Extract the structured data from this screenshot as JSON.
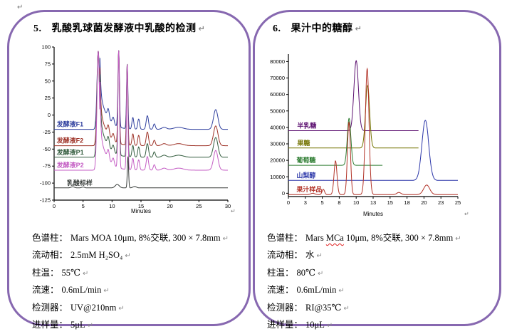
{
  "colors": {
    "panel_border": "#8768b0",
    "axis": "#000000",
    "spellcheck_underline": "#e02020",
    "formatting_mark": "#7a7a7a"
  },
  "glyphs": {
    "return": "↵"
  },
  "formatting_marks": {
    "glyph": "↵",
    "count": 11
  },
  "panels": [
    {
      "number": "5.",
      "title": "乳酸乳球菌发酵液中乳酸的检测",
      "specs": [
        {
          "label": "色谱柱：",
          "parts": [
            {
              "text": "Mars MOA 10μm, 8%交联, 300 × 7.8mm"
            }
          ]
        },
        {
          "label": "流动相：",
          "parts": [
            {
              "text": "2.5mM H₂SO₄"
            }
          ]
        },
        {
          "label": "柱温：",
          "parts": [
            {
              "text": "55℃"
            }
          ]
        },
        {
          "label": "流速：",
          "parts": [
            {
              "text": "0.6mL/min"
            }
          ]
        },
        {
          "label": "检测器：",
          "parts": [
            {
              "text": "UV@210nm"
            }
          ]
        },
        {
          "label": "进样量：",
          "parts": [
            {
              "text": "5μL"
            }
          ]
        }
      ]
    },
    {
      "number": "6.",
      "title": "果汁中的糖醇",
      "specs": [
        {
          "label": "色谱柱：",
          "parts": [
            {
              "text": "Mars "
            },
            {
              "text": "MCa",
              "wavy": true
            },
            {
              "text": " 10μm, 8%交联, 300 × 7.8mm"
            }
          ]
        },
        {
          "label": "流动相：",
          "parts": [
            {
              "text": "水"
            }
          ]
        },
        {
          "label": "柱温：",
          "parts": [
            {
              "text": "80℃"
            }
          ]
        },
        {
          "label": "流速：",
          "parts": [
            {
              "text": "0.6mL/min"
            }
          ]
        },
        {
          "label": "检测器：",
          "parts": [
            {
              "text": "RI@35℃"
            }
          ]
        },
        {
          "label": "进样量：",
          "parts": [
            {
              "text": "10μL"
            }
          ]
        }
      ]
    }
  ],
  "chart_data": [
    {
      "type": "line",
      "title": "乳酸乳球菌发酵液中乳酸的检测",
      "xlabel": "Minutes",
      "ylabel": "",
      "xlim": [
        0,
        30
      ],
      "ylim": [
        -125,
        100
      ],
      "xticks": [
        0,
        5,
        10,
        15,
        20,
        25,
        30
      ],
      "yticks": [
        100,
        75,
        50,
        25,
        0,
        -25,
        -50,
        -75,
        -100,
        -125
      ],
      "grid": false,
      "legend_position": "inline-labels-left",
      "series": [
        {
          "name": "发酵液F1",
          "color": "#2f3f9e",
          "baseline": -21,
          "label_x": 0.45,
          "clip": 96,
          "tail": [
            7.9,
            58,
            1.15
          ],
          "peaks": [
            [
              7.62,
              115,
              0.22
            ],
            [
              9.35,
              14,
              0.18
            ],
            [
              10.2,
              10,
              0.18
            ],
            [
              11.15,
              113,
              0.13
            ],
            [
              12.62,
              95,
              0.12
            ],
            [
              13.6,
              17,
              0.16
            ],
            [
              14.6,
              15,
              0.16
            ],
            [
              16.1,
              20,
              0.2
            ],
            [
              17.3,
              8,
              0.18
            ],
            [
              19.0,
              3,
              0.4
            ],
            [
              21.5,
              3,
              0.8
            ],
            [
              27.9,
              29,
              0.38
            ]
          ]
        },
        {
          "name": "发酵液F2",
          "color": "#9e3328",
          "baseline": -45,
          "label_x": 0.45,
          "clip": 96,
          "tail": [
            7.9,
            58,
            1.15
          ],
          "peaks": [
            [
              7.62,
              139,
              0.22
            ],
            [
              9.35,
              14,
              0.18
            ],
            [
              10.2,
              10,
              0.18
            ],
            [
              11.15,
              137,
              0.13
            ],
            [
              12.62,
              119,
              0.12
            ],
            [
              13.6,
              17,
              0.16
            ],
            [
              14.6,
              15,
              0.16
            ],
            [
              16.1,
              20,
              0.2
            ],
            [
              17.3,
              8,
              0.18
            ],
            [
              19.0,
              3,
              0.4
            ],
            [
              21.5,
              3,
              0.8
            ],
            [
              27.9,
              29,
              0.38
            ]
          ]
        },
        {
          "name": "发酵液P1",
          "color": "#355e40",
          "baseline": -62,
          "label_x": 0.45,
          "clip": 96,
          "tail": [
            7.9,
            58,
            1.15
          ],
          "peaks": [
            [
              7.62,
              156,
              0.22
            ],
            [
              9.35,
              14,
              0.18
            ],
            [
              10.2,
              10,
              0.18
            ],
            [
              11.15,
              154,
              0.13
            ],
            [
              12.62,
              136,
              0.12
            ],
            [
              13.6,
              17,
              0.16
            ],
            [
              14.6,
              15,
              0.16
            ],
            [
              16.1,
              20,
              0.2
            ],
            [
              17.3,
              8,
              0.18
            ],
            [
              19.0,
              3,
              0.4
            ],
            [
              21.5,
              3,
              0.8
            ],
            [
              27.9,
              29,
              0.38
            ]
          ]
        },
        {
          "name": "发酵液P2",
          "color": "#c45ec4",
          "baseline": -81,
          "label_x": 0.45,
          "clip": 96,
          "tail": [
            7.9,
            58,
            1.15
          ],
          "peaks": [
            [
              7.62,
              175,
              0.22
            ],
            [
              9.35,
              14,
              0.18
            ],
            [
              10.2,
              10,
              0.18
            ],
            [
              11.15,
              173,
              0.13
            ],
            [
              12.62,
              155,
              0.12
            ],
            [
              13.6,
              17,
              0.16
            ],
            [
              14.6,
              15,
              0.16
            ],
            [
              16.1,
              20,
              0.2
            ],
            [
              17.3,
              8,
              0.18
            ],
            [
              19.0,
              3,
              0.4
            ],
            [
              21.5,
              3,
              0.8
            ],
            [
              27.9,
              29,
              0.38
            ]
          ]
        },
        {
          "name": "乳酸标样",
          "color": "#3a3f3c",
          "baseline": -107,
          "label_x": 2.2,
          "clip": 96,
          "peaks": [
            [
              3.2,
              1.5,
              0.3
            ],
            [
              5.0,
              1.2,
              0.25
            ],
            [
              10.9,
              5,
              0.35
            ],
            [
              12.75,
              46,
              0.11
            ],
            [
              13.9,
              2,
              0.3
            ]
          ]
        }
      ]
    },
    {
      "type": "line",
      "title": "果汁中的糖醇",
      "xlabel": "Minutes",
      "ylabel": "",
      "xlim": [
        0,
        25
      ],
      "ylim": [
        -2000,
        84500
      ],
      "xticks": [
        0,
        3,
        5,
        8,
        10,
        13,
        15,
        18,
        20,
        23,
        25
      ],
      "yticks": [
        80000,
        70000,
        60000,
        50000,
        40000,
        30000,
        20000,
        10000,
        0
      ],
      "grid": false,
      "legend_position": "inline-labels-left",
      "series": [
        {
          "name": "半乳糖",
          "color": "#5c1070",
          "baseline": 38000,
          "x_end": 19.2,
          "label_x": 1.3,
          "peaks": [
            [
              10.0,
              42500,
              0.33
            ]
          ]
        },
        {
          "name": "果糖",
          "color": "#737300",
          "baseline": 27500,
          "x_end": 19.2,
          "label_x": 1.3,
          "peaks": [
            [
              11.68,
              38000,
              0.3
            ]
          ]
        },
        {
          "name": "葡萄糖",
          "color": "#2e7d32",
          "baseline": 17000,
          "x_end": 13.9,
          "label_x": 1.2,
          "peaks": [
            [
              8.95,
              28500,
              0.26
            ]
          ]
        },
        {
          "name": "山梨醇",
          "color": "#2a35a8",
          "baseline": 7800,
          "label_x": 1.2,
          "peaks": [
            [
              20.2,
              36500,
              0.5
            ]
          ]
        },
        {
          "name": "果汁样品",
          "color": "#b23328",
          "baseline": -800,
          "label_x": 1.2,
          "peaks": [
            [
              3.6,
              800,
              0.3
            ],
            [
              5.15,
              3200,
              0.18
            ],
            [
              6.95,
              20500,
              0.22
            ],
            [
              8.93,
              44000,
              0.22
            ],
            [
              11.62,
              76500,
              0.27
            ],
            [
              16.3,
              1300,
              0.3
            ],
            [
              20.4,
              5800,
              0.45
            ]
          ]
        }
      ]
    }
  ]
}
